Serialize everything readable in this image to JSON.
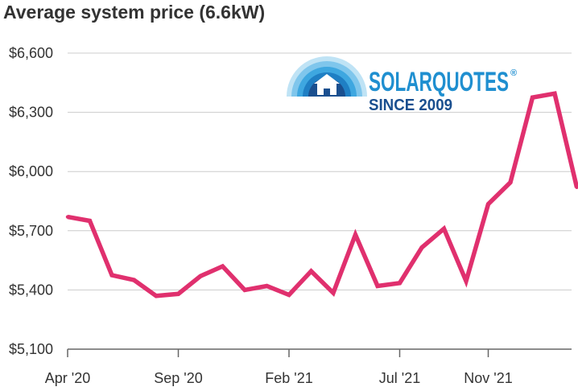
{
  "chart_data": {
    "type": "line",
    "title": "Average system price (6.6kW)",
    "xlabel": "",
    "ylabel": "",
    "ylim": [
      5100,
      6600
    ],
    "y_ticks": [
      "$5,100",
      "$5,400",
      "$5,700",
      "$6,000",
      "$6,300",
      "$6,600"
    ],
    "y_tick_values": [
      5100,
      5400,
      5700,
      6000,
      6300,
      6600
    ],
    "x_ticks": [
      "Apr '20",
      "Sep '20",
      "Feb '21",
      "Jul '21",
      "Nov '21"
    ],
    "x_tick_month_index": [
      0,
      5,
      10,
      15,
      19
    ],
    "grid": true,
    "series": [
      {
        "color": "#e0306e",
        "x": [
          "Apr '20",
          "May '20",
          "Jun '20",
          "Jul '20",
          "Aug '20",
          "Sep '20",
          "Oct '20",
          "Nov '20",
          "Dec '20",
          "Jan '21",
          "Feb '21",
          "Mar '21",
          "Apr '21",
          "May '21",
          "Jun '21",
          "Jul '21",
          "Aug '21",
          "Sep '21",
          "Oct '21",
          "Nov '21",
          "Dec '21",
          "Jan '22",
          "Feb '22",
          "Mar '22"
        ],
        "x_month_index": [
          0,
          1,
          2,
          3,
          4,
          5,
          6,
          7,
          8,
          9,
          10,
          11,
          12,
          13,
          14,
          15,
          16,
          17,
          18,
          19,
          20,
          21,
          22,
          23
        ],
        "values": [
          5770,
          5750,
          5475,
          5450,
          5370,
          5380,
          5470,
          5520,
          5400,
          5420,
          5375,
          5495,
          5385,
          5680,
          5420,
          5435,
          5615,
          5710,
          5445,
          5835,
          5945,
          6375,
          6395,
          5920
        ]
      }
    ]
  },
  "logo": {
    "brand": "SOLARQUOTES",
    "registered": "®",
    "tagline": "SINCE 2009"
  },
  "colors": {
    "line": "#e0306e",
    "grid": "#cccccc",
    "axis": "#666666",
    "text": "#333333",
    "logo_blue": "#1f8fd0",
    "logo_dark": "#1a4f8f"
  }
}
